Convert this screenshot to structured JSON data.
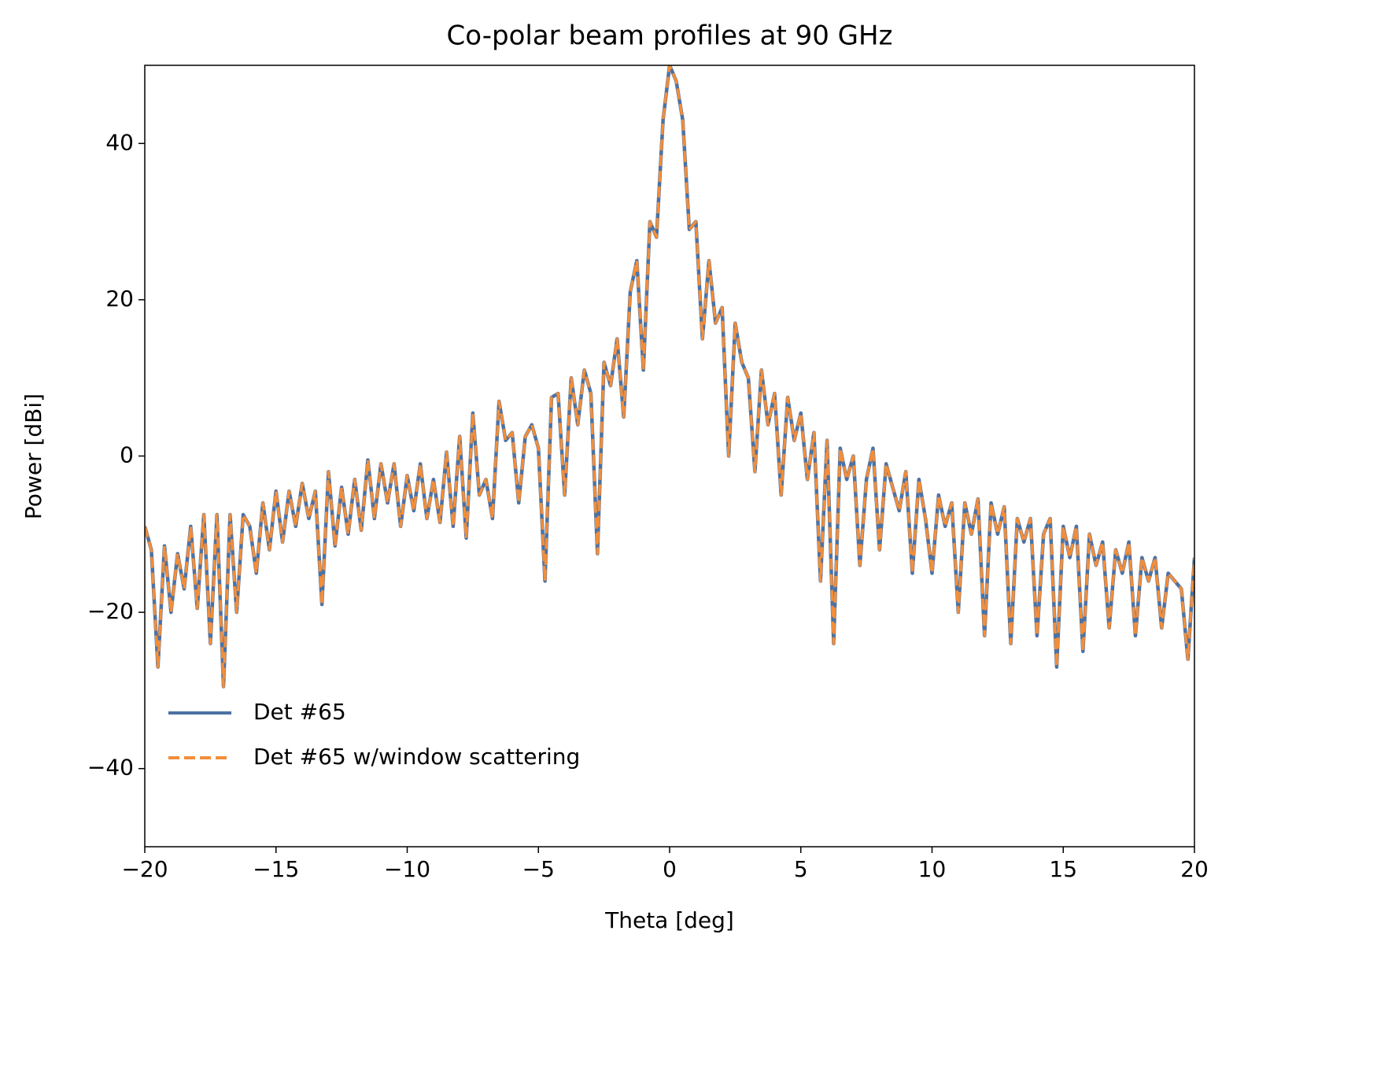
{
  "chart_data": {
    "type": "line",
    "title": "Co-polar beam profiles at 90 GHz",
    "x_label": "Theta [deg]",
    "y_label": "Power [dBi]",
    "xlim": [
      -20,
      20
    ],
    "ylim": [
      -50,
      50
    ],
    "xticks": [
      {
        "value": -20,
        "label": "−20"
      },
      {
        "value": -15,
        "label": "−15"
      },
      {
        "value": -10,
        "label": "−10"
      },
      {
        "value": -5,
        "label": "−5"
      },
      0,
      5,
      10,
      15,
      20
    ],
    "yticks": [
      {
        "value": -40,
        "label": "−40"
      },
      {
        "value": -20,
        "label": "−20"
      },
      0,
      20,
      40
    ],
    "legend": "lower left",
    "grid": false,
    "x": [
      -20,
      -19.75,
      -19.5,
      -19.25,
      -19,
      -18.75,
      -18.5,
      -18.25,
      -18,
      -17.75,
      -17.5,
      -17.25,
      -17,
      -16.75,
      -16.5,
      -16.25,
      -16,
      -15.75,
      -15.5,
      -15.25,
      -15,
      -14.75,
      -14.5,
      -14.25,
      -14,
      -13.75,
      -13.5,
      -13.25,
      -13,
      -12.75,
      -12.5,
      -12.25,
      -12,
      -11.75,
      -11.5,
      -11.25,
      -11,
      -10.75,
      -10.5,
      -10.25,
      -10,
      -9.75,
      -9.5,
      -9.25,
      -9,
      -8.75,
      -8.5,
      -8.25,
      -8,
      -7.75,
      -7.5,
      -7.25,
      -7,
      -6.75,
      -6.5,
      -6.25,
      -6,
      -5.75,
      -5.5,
      -5.25,
      -5,
      -4.75,
      -4.5,
      -4.25,
      -4,
      -3.75,
      -3.5,
      -3.25,
      -3,
      -2.75,
      -2.5,
      -2.25,
      -2,
      -1.75,
      -1.5,
      -1.25,
      -1,
      -0.75,
      -0.5,
      -0.25,
      0,
      0.25,
      0.5,
      0.75,
      1,
      1.25,
      1.5,
      1.75,
      2,
      2.25,
      2.5,
      2.75,
      3,
      3.25,
      3.5,
      3.75,
      4,
      4.25,
      4.5,
      4.75,
      5,
      5.25,
      5.5,
      5.75,
      6,
      6.25,
      6.5,
      6.75,
      7,
      7.25,
      7.5,
      7.75,
      8,
      8.25,
      8.5,
      8.75,
      9,
      9.25,
      9.5,
      9.75,
      10,
      10.25,
      10.5,
      10.75,
      11,
      11.25,
      11.5,
      11.75,
      12,
      12.25,
      12.5,
      12.75,
      13,
      13.25,
      13.5,
      13.75,
      14,
      14.25,
      14.5,
      14.75,
      15,
      15.25,
      15.5,
      15.75,
      16,
      16.25,
      16.5,
      16.75,
      17,
      17.25,
      17.5,
      17.75,
      18,
      18.25,
      18.5,
      18.75,
      19,
      19.25,
      19.5,
      19.75,
      20
    ],
    "series": [
      {
        "name": "Det #65",
        "color": "#4c72a4",
        "dash": "solid",
        "values": [
          -9,
          -12,
          -27,
          -11.5,
          -20,
          -12.5,
          -17,
          -9,
          -19.5,
          -7.5,
          -24,
          -7.5,
          -29.5,
          -7.5,
          -20,
          -7.5,
          -9,
          -15,
          -6,
          -12,
          -4.5,
          -11,
          -4.5,
          -9,
          -3.5,
          -8,
          -4.5,
          -19,
          -2,
          -11.5,
          -4,
          -10,
          -3,
          -9.5,
          -0.5,
          -8,
          -1,
          -6,
          -1,
          -9,
          -2.5,
          -7,
          -1,
          -8,
          -3,
          -8.5,
          0.5,
          -9,
          2.5,
          -10.5,
          5.5,
          -5,
          -3,
          -8,
          7,
          2,
          3,
          -6,
          2.5,
          4,
          1,
          -16,
          7.5,
          8,
          -5,
          10,
          4,
          11,
          8,
          -12.5,
          12,
          9,
          15,
          5,
          21,
          25,
          11,
          30,
          28,
          43,
          50,
          48,
          43,
          29,
          30,
          15,
          25,
          17,
          19,
          0,
          17,
          12,
          10,
          -2,
          11,
          4,
          8,
          -5,
          7.5,
          2,
          5.5,
          -3,
          3,
          -16,
          2,
          -24,
          1,
          -3,
          0,
          -14,
          -3,
          1,
          -12,
          -1,
          -4,
          -7,
          -2,
          -15,
          -3,
          -8,
          -15,
          -5,
          -9,
          -6,
          -20,
          -6,
          -10,
          -5.5,
          -23,
          -6,
          -10,
          -6.5,
          -24,
          -8,
          -11,
          -8,
          -23,
          -10,
          -8,
          -27,
          -9,
          -13,
          -9,
          -25,
          -10,
          -14,
          -11,
          -22,
          -12,
          -15,
          -11,
          -23,
          -13,
          -16,
          -13,
          -22,
          -15,
          -16,
          -17,
          -26,
          -13
        ]
      },
      {
        "name": "Det #65 w/window scattering",
        "color": "#f28e3a",
        "dash": "dashed",
        "values": [
          -9,
          -12,
          -27,
          -11.5,
          -20,
          -12.5,
          -17,
          -9,
          -19.5,
          -7.5,
          -24,
          -7.5,
          -29.5,
          -7.5,
          -20,
          -7.5,
          -9,
          -15,
          -6,
          -12,
          -4.5,
          -11,
          -4.5,
          -9,
          -3.5,
          -8,
          -4.5,
          -19,
          -2,
          -11.5,
          -4,
          -10,
          -3,
          -9.5,
          -0.5,
          -8,
          -1,
          -6,
          -1,
          -9,
          -2.5,
          -7,
          -1,
          -8,
          -3,
          -8.5,
          0.5,
          -9,
          2.5,
          -10.5,
          5.5,
          -5,
          -3,
          -8,
          7,
          2,
          3,
          -6,
          2.5,
          4,
          1,
          -16,
          7.5,
          8,
          -5,
          10,
          4,
          11,
          8,
          -12.5,
          12,
          9,
          15,
          5,
          21,
          25,
          11,
          30,
          28,
          43,
          50,
          48,
          43,
          29,
          30,
          15,
          25,
          17,
          19,
          0,
          17,
          12,
          10,
          -2,
          11,
          4,
          8,
          -5,
          7.5,
          2,
          5.5,
          -3,
          3,
          -16,
          2,
          -24,
          1,
          -3,
          0,
          -14,
          -3,
          1,
          -12,
          -1,
          -4,
          -7,
          -2,
          -15,
          -3,
          -8,
          -15,
          -5,
          -9,
          -6,
          -20,
          -6,
          -10,
          -5.5,
          -23,
          -6,
          -10,
          -6.5,
          -24,
          -8,
          -11,
          -8,
          -23,
          -10,
          -8,
          -27,
          -9,
          -13,
          -9,
          -25,
          -10,
          -14,
          -11,
          -22,
          -12,
          -15,
          -11,
          -23,
          -13,
          -16,
          -13,
          -22,
          -15,
          -16,
          -17,
          -26,
          -13
        ]
      }
    ]
  }
}
